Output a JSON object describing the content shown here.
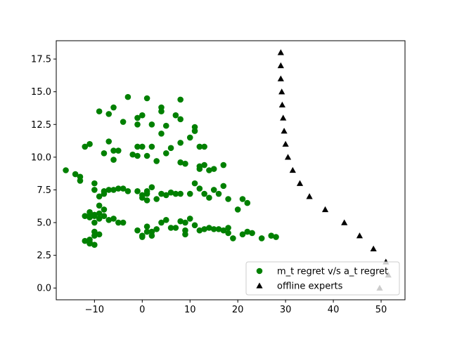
{
  "chart_data": {
    "type": "scatter",
    "title": "",
    "xlabel": "",
    "ylabel": "",
    "xlim": [
      -18,
      55
    ],
    "ylim": [
      -0.9,
      18.9
    ],
    "x_ticks": [
      -10,
      0,
      10,
      20,
      30,
      40,
      50
    ],
    "x_tick_labels": [
      "−10",
      "0",
      "10",
      "20",
      "30",
      "40",
      "50"
    ],
    "y_ticks": [
      0.0,
      2.5,
      5.0,
      7.5,
      10.0,
      12.5,
      15.0,
      17.5
    ],
    "y_tick_labels": [
      "0.0",
      "2.5",
      "5.0",
      "7.5",
      "10.0",
      "12.5",
      "15.0",
      "17.5"
    ],
    "grid": false,
    "legend_position": "lower-right",
    "series": [
      {
        "name": "m_t regret v/s a_t regret",
        "marker": "circle",
        "color": "#008000",
        "points": [
          [
            -16,
            9.0
          ],
          [
            -14,
            8.7
          ],
          [
            -13,
            8.5
          ],
          [
            -13,
            8.2
          ],
          [
            -12,
            10.8
          ],
          [
            -11,
            11.0
          ],
          [
            -9,
            13.5
          ],
          [
            -8,
            10.3
          ],
          [
            -6,
            10.5
          ],
          [
            -7,
            11.2
          ],
          [
            -6,
            9.8
          ],
          [
            -6,
            13.8
          ],
          [
            -7,
            13.3
          ],
          [
            -3,
            14.6
          ],
          [
            -4,
            12.7
          ],
          [
            -5,
            10.5
          ],
          [
            -10,
            8.0
          ],
          [
            -10,
            7.5
          ],
          [
            -9,
            7.0
          ],
          [
            -8,
            7.4
          ],
          [
            -7,
            7.5
          ],
          [
            -6,
            7.5
          ],
          [
            -5,
            7.6
          ],
          [
            -4,
            7.6
          ],
          [
            -3,
            7.4
          ],
          [
            -8,
            7.2
          ],
          [
            -11,
            5.8
          ],
          [
            -11,
            5.4
          ],
          [
            -10,
            5.5
          ],
          [
            -9,
            5.3
          ],
          [
            -8,
            5.5
          ],
          [
            -7,
            5.2
          ],
          [
            -6,
            5.3
          ],
          [
            -5,
            5.0
          ],
          [
            -4,
            5.0
          ],
          [
            -9,
            6.3
          ],
          [
            -8,
            6.0
          ],
          [
            -11,
            3.7
          ],
          [
            -11,
            3.5
          ],
          [
            -10,
            3.3
          ],
          [
            -10,
            4.0
          ],
          [
            -10,
            4.3
          ],
          [
            -9,
            4.1
          ],
          [
            -11,
            3.4
          ],
          [
            -12,
            3.6
          ],
          [
            -9,
            5.7
          ],
          [
            -10,
            5.6
          ],
          [
            -11,
            5.5
          ],
          [
            -12,
            5.5
          ],
          [
            -10,
            5.0
          ],
          [
            0,
            13.2
          ],
          [
            1,
            14.5
          ],
          [
            -1,
            12.5
          ],
          [
            2,
            12.5
          ],
          [
            -1,
            10.8
          ],
          [
            0,
            10.8
          ],
          [
            2,
            10.8
          ],
          [
            1,
            10.1
          ],
          [
            -1,
            10.1
          ],
          [
            -2,
            10.2
          ],
          [
            -1,
            13.0
          ],
          [
            4,
            13.8
          ],
          [
            4,
            11.8
          ],
          [
            5,
            12.4
          ],
          [
            4,
            13.5
          ],
          [
            3,
            9.7
          ],
          [
            5,
            10.3
          ],
          [
            6,
            10.7
          ],
          [
            7,
            13.2
          ],
          [
            8,
            12.9
          ],
          [
            8,
            14.4
          ],
          [
            9,
            9.5
          ],
          [
            8,
            9.6
          ],
          [
            8,
            11.1
          ],
          [
            10,
            11.5
          ],
          [
            11,
            12.3
          ],
          [
            11,
            12.0
          ],
          [
            12,
            10.8
          ],
          [
            13,
            10.8
          ],
          [
            12,
            9.3
          ],
          [
            12,
            9.1
          ],
          [
            13,
            9.4
          ],
          [
            14,
            9.0
          ],
          [
            15,
            9.1
          ],
          [
            17,
            9.4
          ],
          [
            -1,
            7.4
          ],
          [
            0,
            7.1
          ],
          [
            1,
            7.4
          ],
          [
            2,
            7.7
          ],
          [
            1,
            7.2
          ],
          [
            0,
            6.9
          ],
          [
            1,
            6.7
          ],
          [
            3,
            6.8
          ],
          [
            4,
            7.2
          ],
          [
            5,
            7.1
          ],
          [
            6,
            7.3
          ],
          [
            7,
            7.2
          ],
          [
            8,
            7.2
          ],
          [
            10,
            7.2
          ],
          [
            11,
            8.0
          ],
          [
            12,
            7.6
          ],
          [
            13,
            7.2
          ],
          [
            15,
            7.5
          ],
          [
            16,
            7.2
          ],
          [
            14,
            6.9
          ],
          [
            17,
            7.8
          ],
          [
            18,
            6.8
          ],
          [
            20,
            6.0
          ],
          [
            21,
            6.8
          ],
          [
            22,
            6.5
          ],
          [
            -1,
            4.4
          ],
          [
            0,
            4.0
          ],
          [
            1,
            4.3
          ],
          [
            0,
            3.9
          ],
          [
            2,
            4.3
          ],
          [
            1,
            4.7
          ],
          [
            2,
            4.0
          ],
          [
            3,
            4.5
          ],
          [
            4,
            5.0
          ],
          [
            5,
            5.2
          ],
          [
            6,
            4.6
          ],
          [
            7,
            4.6
          ],
          [
            8,
            5.1
          ],
          [
            9,
            5.0
          ],
          [
            10,
            5.3
          ],
          [
            11,
            4.8
          ],
          [
            9,
            4.4
          ],
          [
            9,
            4.1
          ],
          [
            12,
            4.4
          ],
          [
            13,
            4.5
          ],
          [
            14,
            4.6
          ],
          [
            15,
            4.5
          ],
          [
            16,
            4.5
          ],
          [
            17,
            4.4
          ],
          [
            18,
            4.6
          ],
          [
            18,
            4.2
          ],
          [
            19,
            3.8
          ],
          [
            21,
            4.1
          ],
          [
            22,
            4.3
          ],
          [
            23,
            4.2
          ],
          [
            25,
            3.8
          ],
          [
            27,
            4.0
          ],
          [
            28,
            3.9
          ]
        ]
      },
      {
        "name": "offline experts",
        "marker": "triangle",
        "color": "#000000",
        "points": [
          [
            29.0,
            18.0
          ],
          [
            29.0,
            17.0
          ],
          [
            29.0,
            16.0
          ],
          [
            29.2,
            15.0
          ],
          [
            29.3,
            14.0
          ],
          [
            29.5,
            13.0
          ],
          [
            29.7,
            12.0
          ],
          [
            30.0,
            11.0
          ],
          [
            30.5,
            10.0
          ],
          [
            31.5,
            9.0
          ],
          [
            33.0,
            8.0
          ],
          [
            35.0,
            7.0
          ],
          [
            38.3,
            6.0
          ],
          [
            42.3,
            5.0
          ],
          [
            45.5,
            4.0
          ],
          [
            48.4,
            3.0
          ],
          [
            51.0,
            2.0
          ],
          [
            51.5,
            1.0
          ],
          [
            49.7,
            0.0
          ]
        ]
      }
    ]
  }
}
